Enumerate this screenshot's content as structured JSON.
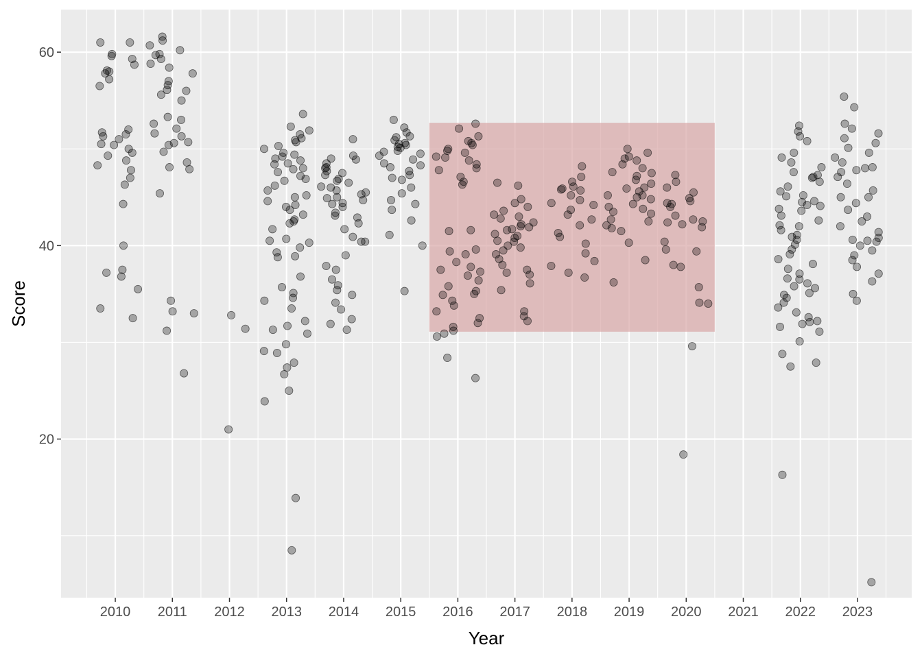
{
  "chart_data": {
    "type": "scatter",
    "title": "",
    "xlabel": "Year",
    "ylabel": "Score",
    "x_ticks": [
      "2010",
      "2011",
      "2012",
      "2013",
      "2014",
      "2015",
      "2016",
      "2017",
      "2018",
      "2019",
      "2020",
      "2021",
      "2022",
      "2023"
    ],
    "y_ticks": [
      20,
      40,
      60
    ],
    "xlim": [
      2009.05,
      2023.95
    ],
    "ylim": [
      3.6,
      64.4
    ],
    "grid": true,
    "jittered": true,
    "point_color": "#000000",
    "point_opacity": 0.3,
    "highlight_rect": {
      "x_range": [
        2015.5,
        2020.5
      ],
      "y_range": [
        31.1,
        52.7
      ],
      "color": "#d9a7a7",
      "opacity": 0.7
    },
    "points": {
      "2010": [
        37.5,
        37.2,
        36.8,
        35.5,
        40.0,
        44.3,
        33.5,
        32.5,
        46.3,
        47.0,
        48.8,
        49.3,
        50.0,
        50.5,
        51.0,
        51.3,
        51.7,
        52.0,
        49.6,
        47.8,
        48.3,
        50.4,
        51.5,
        57.2,
        57.8,
        58.0,
        58.7,
        59.3,
        59.6,
        59.8,
        61.0,
        61.0,
        56.5,
        58.1
      ],
      "2011": [
        31.2,
        33.2,
        33.0,
        34.3,
        26.8,
        45.4,
        48.1,
        47.9,
        48.6,
        49.7,
        50.6,
        50.7,
        51.3,
        51.6,
        52.1,
        52.6,
        53.0,
        53.3,
        55.0,
        55.6,
        56.1,
        56.6,
        57.0,
        57.8,
        58.4,
        58.8,
        59.3,
        59.7,
        60.2,
        60.7,
        61.2,
        61.6,
        50.4,
        59.8,
        56.0
      ],
      "2012": [
        21.0,
        32.8,
        31.4
      ],
      "2013": [
        8.5,
        13.9,
        23.9,
        25.0,
        26.7,
        27.4,
        27.9,
        28.9,
        29.8,
        30.9,
        31.3,
        31.7,
        32.2,
        33.5,
        34.3,
        34.6,
        35.1,
        35.7,
        36.8,
        38.9,
        39.3,
        39.8,
        40.3,
        40.7,
        41.7,
        42.3,
        42.7,
        43.2,
        43.7,
        44.2,
        44.6,
        45.2,
        45.7,
        46.2,
        46.7,
        47.2,
        47.6,
        48.0,
        48.4,
        48.8,
        49.2,
        49.6,
        50.0,
        50.3,
        50.7,
        51.1,
        51.5,
        51.9,
        52.3,
        53.6,
        38.8,
        29.1,
        49.0,
        48.5,
        47.9,
        50.9,
        49.4,
        44.0,
        42.5,
        46.9,
        45.0,
        40.5
      ],
      "2014": [
        31.3,
        31.9,
        32.4,
        33.4,
        34.1,
        34.9,
        35.4,
        35.9,
        36.5,
        37.5,
        37.9,
        39.0,
        40.4,
        40.9,
        41.7,
        42.3,
        42.9,
        43.4,
        44.0,
        44.4,
        44.9,
        45.3,
        45.7,
        46.1,
        46.5,
        46.9,
        47.3,
        47.7,
        48.1,
        48.5,
        48.9,
        49.3,
        51.0,
        45.0,
        46.0,
        47.5,
        44.7,
        43.1,
        48.0,
        40.4,
        46.7,
        45.5,
        49.0,
        44.3
      ],
      "2015": [
        35.3,
        40.0,
        41.1,
        42.6,
        43.7,
        44.3,
        44.7,
        45.4,
        46.0,
        46.8,
        47.3,
        47.7,
        48.1,
        48.5,
        48.9,
        49.3,
        49.7,
        50.1,
        50.5,
        50.9,
        51.3,
        51.7,
        52.2,
        53.0,
        50.2,
        49.8,
        50.6,
        47.0,
        48.3,
        49.5,
        50.4,
        51.2
      ],
      "2016": [
        26.3,
        28.4,
        30.6,
        31.2,
        31.6,
        32.0,
        32.5,
        33.2,
        33.8,
        34.3,
        34.9,
        35.3,
        35.8,
        36.4,
        36.9,
        37.3,
        37.8,
        38.3,
        39.1,
        39.6,
        41.5,
        41.6,
        46.3,
        46.6,
        47.1,
        47.8,
        48.4,
        48.8,
        49.2,
        49.6,
        50.0,
        50.4,
        50.8,
        51.3,
        52.1,
        52.6,
        30.9,
        37.5,
        49.1,
        48.0,
        50.6,
        49.8,
        39.4,
        35.0
      ],
      "2017": [
        32.2,
        32.7,
        33.2,
        35.4,
        36.1,
        37.0,
        37.5,
        38.0,
        38.6,
        39.1,
        39.5,
        40.0,
        40.4,
        40.8,
        41.2,
        41.6,
        42.0,
        42.4,
        42.8,
        43.2,
        43.6,
        44.0,
        44.4,
        44.8,
        46.2,
        46.5,
        41.9,
        41.7,
        42.2,
        39.8,
        37.2,
        40.5,
        43.0,
        41.0
      ],
      "2018": [
        36.7,
        37.2,
        37.9,
        38.4,
        39.2,
        40.2,
        40.9,
        41.3,
        42.1,
        42.7,
        43.2,
        43.7,
        44.2,
        44.7,
        45.2,
        45.7,
        46.1,
        46.6,
        47.1,
        48.2,
        45.9,
        45.8,
        44.4
      ],
      "2019": [
        36.2,
        38.5,
        40.3,
        41.5,
        42.1,
        42.7,
        43.3,
        43.8,
        44.3,
        44.8,
        45.2,
        45.6,
        46.0,
        46.4,
        46.8,
        47.2,
        47.6,
        48.0,
        48.4,
        48.8,
        49.2,
        49.6,
        50.0,
        45.2,
        45.0,
        41.8,
        43.5,
        47.5,
        49.0,
        45.9,
        44.0,
        42.5
      ],
      "2020": [
        18.4,
        29.6,
        34.0,
        34.1,
        35.7,
        37.8,
        38.0,
        39.4,
        39.6,
        40.4,
        41.9,
        42.2,
        42.5,
        42.7,
        43.1,
        44.0,
        44.4,
        44.6,
        44.9,
        45.5,
        46.0,
        46.6,
        47.3,
        42.4,
        44.3
      ],
      "2021": [],
      "2022": [
        16.3,
        27.5,
        27.9,
        28.8,
        30.1,
        31.1,
        31.6,
        32.1,
        32.6,
        33.1,
        33.6,
        34.1,
        34.6,
        35.1,
        35.6,
        36.1,
        36.6,
        37.1,
        37.6,
        38.1,
        38.6,
        39.1,
        39.6,
        40.1,
        40.6,
        41.1,
        41.6,
        42.1,
        42.6,
        43.1,
        43.6,
        44.1,
        44.6,
        45.1,
        45.6,
        46.1,
        46.6,
        47.1,
        47.6,
        48.1,
        48.6,
        49.1,
        49.6,
        50.8,
        51.3,
        51.8,
        52.4,
        44.2,
        44.5,
        43.8,
        45.2,
        47.3,
        47.0,
        32.2,
        35.8,
        36.5,
        34.9,
        31.9,
        40.9,
        42.0
      ],
      "2023": [
        5.2,
        34.3,
        35.0,
        36.3,
        37.1,
        37.8,
        38.5,
        39.0,
        39.5,
        40.0,
        40.4,
        40.8,
        41.4,
        42.0,
        42.5,
        43.0,
        43.7,
        44.4,
        45.0,
        45.7,
        46.4,
        47.1,
        47.6,
        48.1,
        48.6,
        49.1,
        49.6,
        50.1,
        50.6,
        51.1,
        51.6,
        52.1,
        52.6,
        54.3,
        55.4,
        40.6,
        40.5,
        47.8,
        45.0,
        48.0
      ]
    }
  }
}
